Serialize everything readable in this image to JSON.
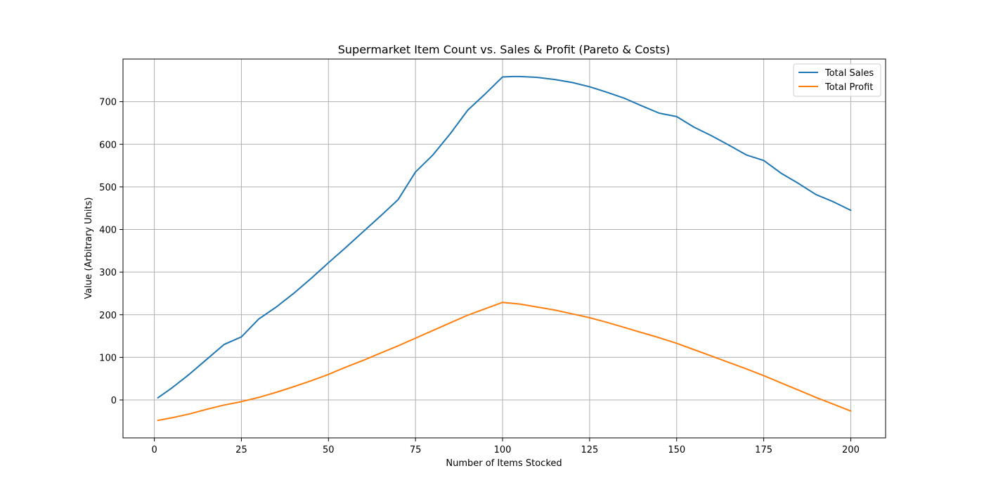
{
  "chart_data": {
    "type": "line",
    "title": "Supermarket Item Count vs. Sales & Profit (Pareto & Costs)",
    "xlabel": "Number of Items Stocked",
    "ylabel": "Value (Arbitrary Units)",
    "xlim": [
      -9,
      210
    ],
    "ylim": [
      -89,
      800
    ],
    "xticks": [
      0,
      25,
      50,
      75,
      100,
      125,
      150,
      175,
      200
    ],
    "yticks": [
      0,
      100,
      200,
      300,
      400,
      500,
      600,
      700
    ],
    "grid": true,
    "legend_position": "top-right",
    "series": [
      {
        "name": "Total Sales",
        "color": "#1f77b4",
        "x": [
          1,
          5,
          10,
          15,
          20,
          25,
          30,
          35,
          40,
          45,
          50,
          55,
          60,
          65,
          70,
          75,
          80,
          85,
          90,
          95,
          100,
          103,
          105,
          110,
          115,
          120,
          125,
          130,
          135,
          140,
          145,
          150,
          155,
          160,
          165,
          170,
          175,
          180,
          185,
          190,
          195,
          200
        ],
        "values": [
          5,
          28,
          60,
          95,
          130,
          148,
          190,
          218,
          250,
          285,
          322,
          358,
          395,
          432,
          470,
          535,
          575,
          625,
          680,
          718,
          758,
          759,
          759,
          757,
          752,
          745,
          735,
          722,
          708,
          690,
          673,
          665,
          640,
          620,
          598,
          575,
          562,
          532,
          508,
          482,
          465,
          445
        ]
      },
      {
        "name": "Total Profit",
        "color": "#ff7f0e",
        "x": [
          1,
          5,
          10,
          15,
          20,
          25,
          30,
          35,
          40,
          45,
          50,
          55,
          60,
          65,
          70,
          75,
          80,
          85,
          90,
          95,
          100,
          105,
          110,
          115,
          120,
          125,
          130,
          135,
          140,
          145,
          150,
          155,
          160,
          165,
          170,
          175,
          180,
          185,
          190,
          195,
          200
        ],
        "values": [
          -48,
          -42,
          -33,
          -22,
          -12,
          -4,
          6,
          18,
          31,
          45,
          60,
          77,
          93,
          110,
          127,
          145,
          163,
          181,
          199,
          214,
          229,
          225,
          218,
          211,
          202,
          193,
          182,
          170,
          158,
          146,
          133,
          118,
          103,
          88,
          73,
          57,
          40,
          23,
          6,
          -10,
          -26
        ]
      }
    ]
  }
}
